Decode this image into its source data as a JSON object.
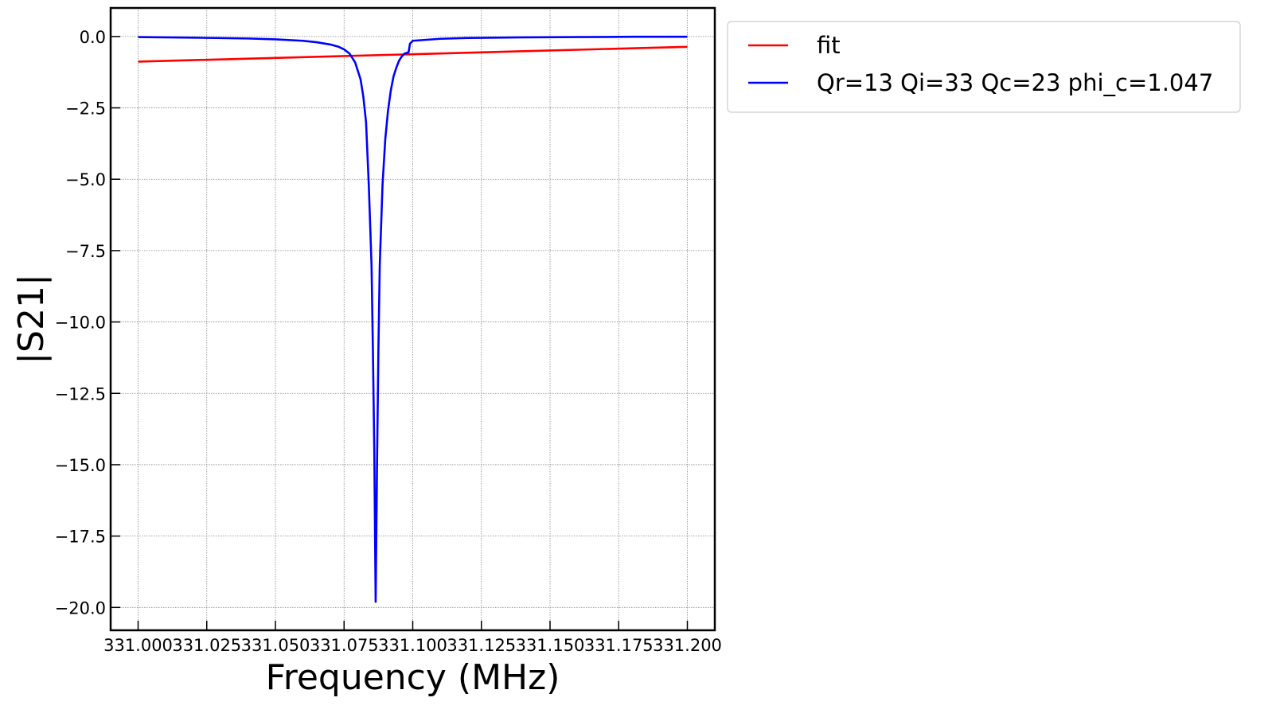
{
  "chart_data": {
    "type": "line",
    "xlabel": "Frequency (MHz)",
    "ylabel": "|S21|",
    "xlim": [
      330.99,
      331.21
    ],
    "ylim": [
      -20.8,
      1.0
    ],
    "grid": true,
    "legend_position": "outside-top-right",
    "xticks": [
      331.0,
      331.025,
      331.05,
      331.075,
      331.1,
      331.125,
      331.15,
      331.175,
      331.2
    ],
    "xtick_labels": [
      "331.000",
      "331.025",
      "331.050",
      "331.075",
      "331.100",
      "331.125",
      "331.150",
      "331.175",
      "331.200"
    ],
    "yticks": [
      0.0,
      -2.5,
      -5.0,
      -7.5,
      -10.0,
      -12.5,
      -15.0,
      -17.5,
      -20.0
    ],
    "ytick_labels": [
      "0.0",
      "−2.5",
      "−5.0",
      "−7.5",
      "−10.0",
      "−12.5",
      "−15.0",
      "−17.5",
      "−20.0"
    ],
    "series": [
      {
        "name": "fit",
        "color": "#ff0000",
        "x": [
          331.0,
          331.2
        ],
        "y": [
          -0.88,
          -0.36
        ]
      },
      {
        "name": "Qr=13 Qi=33 Qc=23 phi_c=1.047",
        "color": "#0000ff",
        "x": [
          331.0,
          331.02,
          331.04,
          331.05,
          331.06,
          331.065,
          331.07,
          331.073,
          331.075,
          331.077,
          331.079,
          331.081,
          331.082,
          331.083,
          331.084,
          331.085,
          331.0855,
          331.086,
          331.0865,
          331.087,
          331.0875,
          331.088,
          331.089,
          331.09,
          331.091,
          331.092,
          331.093,
          331.094,
          331.095,
          331.096,
          331.097,
          331.0985,
          331.099,
          331.1,
          331.11,
          331.12,
          331.14,
          331.16,
          331.18,
          331.2
        ],
        "y": [
          -0.02,
          -0.04,
          -0.07,
          -0.1,
          -0.15,
          -0.2,
          -0.28,
          -0.36,
          -0.45,
          -0.6,
          -0.9,
          -1.5,
          -2.1,
          -3.0,
          -5.2,
          -8.0,
          -11.0,
          -14.5,
          -19.8,
          -15.0,
          -11.0,
          -8.0,
          -5.2,
          -3.6,
          -2.6,
          -1.9,
          -1.4,
          -1.1,
          -0.85,
          -0.7,
          -0.6,
          -0.55,
          -0.25,
          -0.15,
          -0.08,
          -0.05,
          -0.03,
          -0.02,
          -0.01,
          -0.01
        ]
      }
    ]
  }
}
